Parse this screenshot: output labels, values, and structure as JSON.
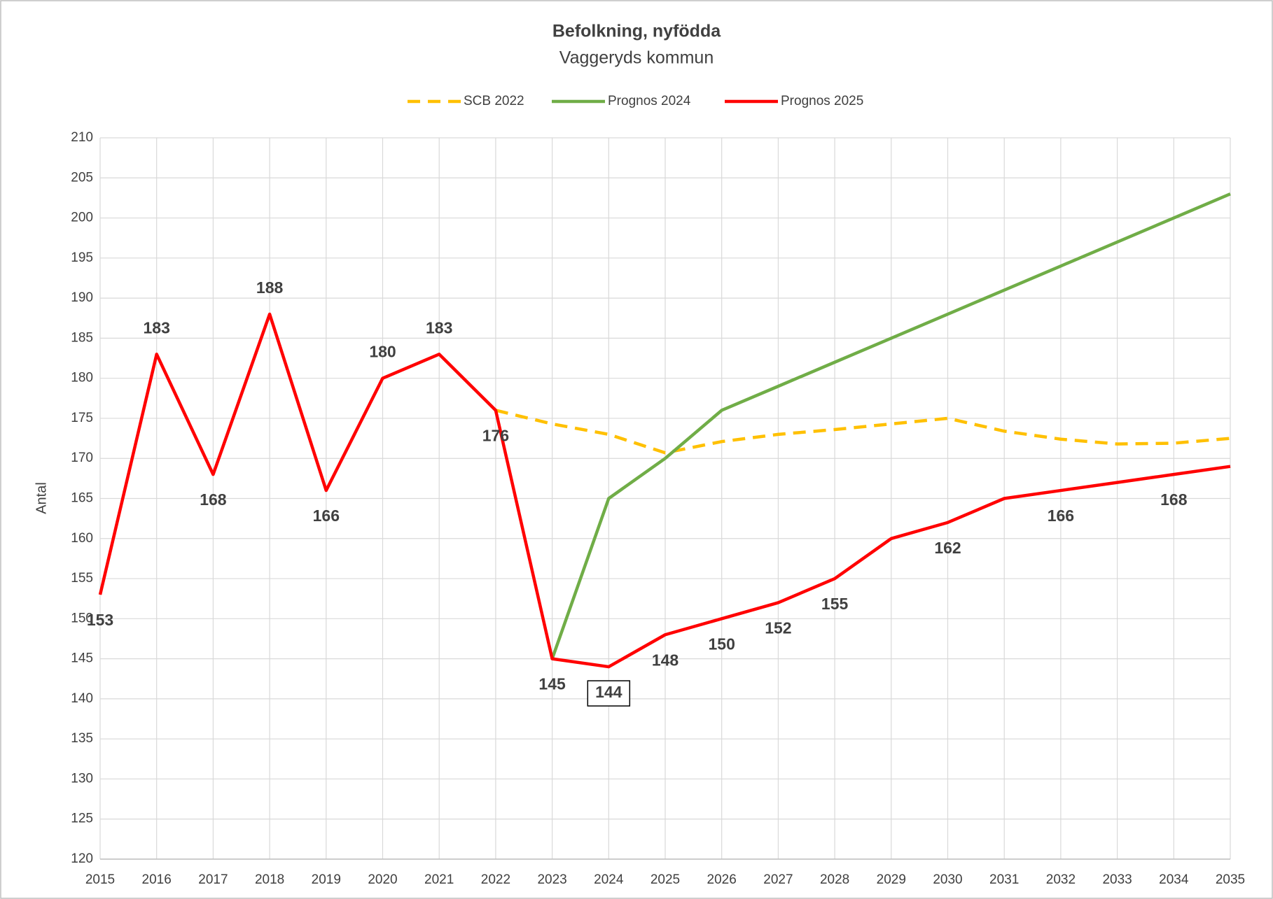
{
  "chart_data": {
    "type": "line",
    "title": "Befolkning, nyfödda",
    "subtitle": "Vaggeryds kommun",
    "ylabel": "Antal",
    "categories": [
      "2015",
      "2016",
      "2017",
      "2018",
      "2019",
      "2020",
      "2021",
      "2022",
      "2023",
      "2024",
      "2025",
      "2026",
      "2027",
      "2028",
      "2029",
      "2030",
      "2031",
      "2032",
      "2033",
      "2034",
      "2035"
    ],
    "series": [
      {
        "name": "SCB 2022",
        "color": "#ffc000",
        "dashed": true,
        "values": [
          null,
          null,
          null,
          null,
          null,
          null,
          null,
          176,
          174.3,
          173,
          170.7,
          172.1,
          173,
          173.6,
          174.3,
          175,
          173.4,
          172.4,
          171.8,
          171.9,
          172.5
        ]
      },
      {
        "name": "Prognos 2024",
        "color": "#70ad47",
        "dashed": false,
        "values": [
          null,
          null,
          null,
          null,
          null,
          null,
          null,
          null,
          145,
          165,
          170,
          176,
          179,
          182,
          185,
          188,
          191,
          194,
          197,
          200,
          203
        ]
      },
      {
        "name": "Prognos 2025",
        "color": "#ff0000",
        "dashed": false,
        "values": [
          153,
          183,
          168,
          188,
          166,
          180,
          183,
          176,
          145,
          144,
          148,
          150,
          152,
          155,
          160,
          162,
          165,
          166,
          167,
          168,
          169
        ],
        "value_labels": [
          "153",
          "183",
          "168",
          "188",
          "166",
          "180",
          "183",
          "176",
          "145",
          "144",
          "148",
          "150",
          "152",
          "155",
          null,
          "162",
          null,
          "166",
          null,
          "168",
          null
        ]
      }
    ],
    "ylim": [
      120,
      210
    ],
    "yticks": [
      120,
      125,
      130,
      135,
      140,
      145,
      150,
      155,
      160,
      165,
      170,
      175,
      180,
      185,
      190,
      195,
      200,
      205,
      210
    ],
    "grid": true,
    "legend": "top"
  }
}
